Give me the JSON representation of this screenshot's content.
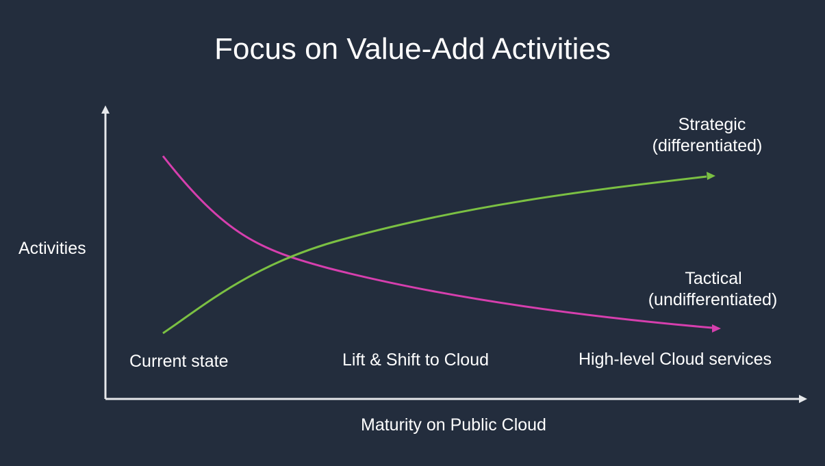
{
  "slide": {
    "title": "Focus on Value-Add Activities",
    "background_color": "#232d3d"
  },
  "axes": {
    "y_label": "Activities",
    "x_label": "Maturity on Public Cloud",
    "axis_color": "#e6e8eb"
  },
  "stages": [
    "Current  state",
    "Lift & Shift to Cloud",
    "High-level Cloud services"
  ],
  "curves": {
    "strategic": {
      "label_line1": "Strategic",
      "label_line2": "(differentiated)",
      "trend": "increasing",
      "color": "#7bc043"
    },
    "tactical": {
      "label_line1": "Tactical",
      "label_line2": "(undifferentiated)",
      "trend": "decreasing",
      "color": "#d63fae"
    }
  }
}
